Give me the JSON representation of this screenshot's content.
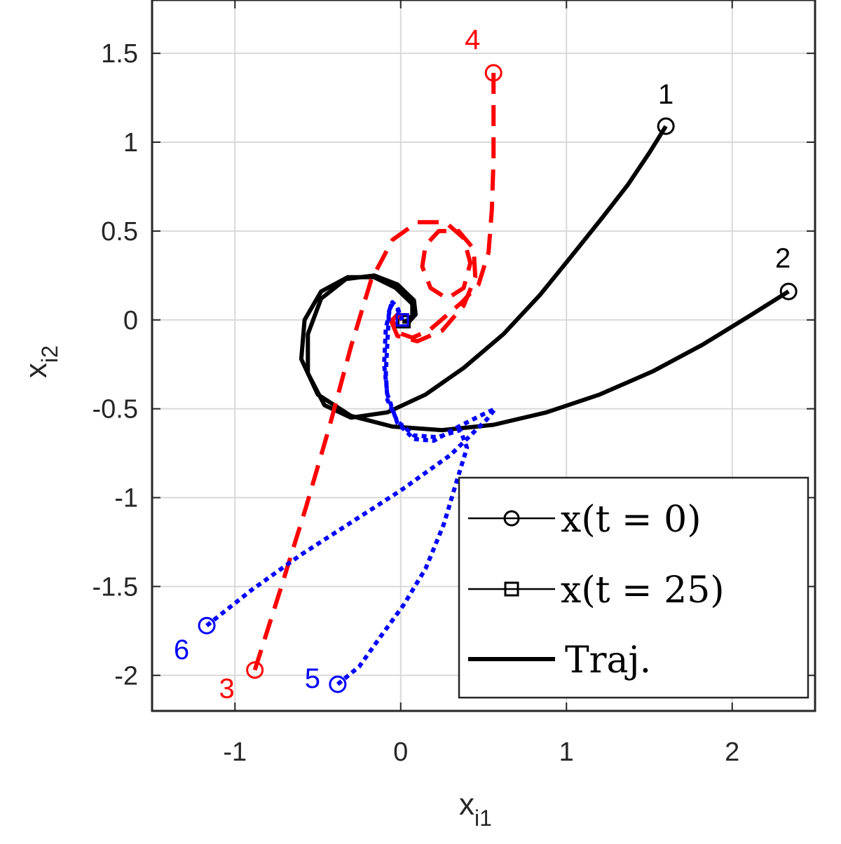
{
  "chart_data": {
    "type": "line",
    "xlabel": {
      "base": "x",
      "sub": "i1"
    },
    "ylabel": {
      "base": "x",
      "sub": "i2"
    },
    "xlim": [
      -1.5,
      2.5
    ],
    "ylim": [
      -2.2,
      1.8
    ],
    "xticks": [
      -1,
      0,
      1,
      2
    ],
    "xtick_labels": [
      "-1",
      "0",
      "1",
      "2"
    ],
    "yticks": [
      -2,
      -1.5,
      -1,
      -0.5,
      0,
      0.5,
      1,
      1.5
    ],
    "ytick_labels": [
      "-2",
      "-1.5",
      "-1",
      "-0.5",
      "0",
      "0.5",
      "1",
      "1.5"
    ],
    "grid": true,
    "legend": {
      "location": "bottom-right",
      "entries": [
        {
          "label": "x(t = 0)",
          "marker": "circle"
        },
        {
          "label": "x(t = 25)",
          "marker": "square"
        },
        {
          "label": "Traj.",
          "marker": "line"
        }
      ]
    },
    "series": [
      {
        "label": "1",
        "color": "#000000",
        "style": "solid",
        "points": [
          [
            1.6,
            1.09
          ],
          [
            1.5,
            0.94
          ],
          [
            1.37,
            0.76
          ],
          [
            1.22,
            0.58
          ],
          [
            1.04,
            0.37
          ],
          [
            0.84,
            0.14
          ],
          [
            0.62,
            -0.08
          ],
          [
            0.38,
            -0.27
          ],
          [
            0.15,
            -0.42
          ],
          [
            -0.08,
            -0.52
          ],
          [
            -0.3,
            -0.55
          ],
          [
            -0.46,
            -0.48
          ],
          [
            -0.56,
            -0.3
          ],
          [
            -0.56,
            -0.08
          ],
          [
            -0.48,
            0.12
          ],
          [
            -0.33,
            0.23
          ],
          [
            -0.16,
            0.25
          ],
          [
            -0.02,
            0.2
          ],
          [
            0.08,
            0.11
          ],
          [
            0.09,
            0.03
          ],
          [
            0.05,
            -0.01
          ],
          [
            0.01,
            -0.01
          ]
        ]
      },
      {
        "label": "2",
        "color": "#000000",
        "style": "solid",
        "points": [
          [
            2.34,
            0.16
          ],
          [
            2.1,
            0.02
          ],
          [
            1.82,
            -0.14
          ],
          [
            1.52,
            -0.29
          ],
          [
            1.2,
            -0.42
          ],
          [
            0.88,
            -0.52
          ],
          [
            0.56,
            -0.59
          ],
          [
            0.25,
            -0.62
          ],
          [
            -0.05,
            -0.6
          ],
          [
            -0.3,
            -0.54
          ],
          [
            -0.5,
            -0.42
          ],
          [
            -0.6,
            -0.22
          ],
          [
            -0.58,
            0.0
          ],
          [
            -0.48,
            0.16
          ],
          [
            -0.32,
            0.24
          ],
          [
            -0.16,
            0.24
          ],
          [
            -0.03,
            0.18
          ],
          [
            0.07,
            0.09
          ],
          [
            0.07,
            0.01
          ],
          [
            0.02,
            -0.01
          ]
        ]
      },
      {
        "label": "3",
        "color": "#ff0000",
        "style": "dashed",
        "points": [
          [
            -0.88,
            -1.97
          ],
          [
            -0.72,
            -1.5
          ],
          [
            -0.57,
            -1.05
          ],
          [
            -0.43,
            -0.6
          ],
          [
            -0.3,
            -0.15
          ],
          [
            -0.18,
            0.22
          ],
          [
            -0.05,
            0.45
          ],
          [
            0.1,
            0.55
          ],
          [
            0.27,
            0.55
          ],
          [
            0.38,
            0.46
          ],
          [
            0.42,
            0.32
          ],
          [
            0.38,
            0.18
          ],
          [
            0.28,
            0.12
          ],
          [
            0.18,
            0.18
          ],
          [
            0.13,
            0.3
          ],
          [
            0.15,
            0.42
          ],
          [
            0.23,
            0.5
          ],
          [
            0.35,
            0.5
          ],
          [
            0.44,
            0.4
          ],
          [
            0.45,
            0.24
          ],
          [
            0.38,
            0.08
          ],
          [
            0.25,
            -0.06
          ],
          [
            0.1,
            -0.12
          ],
          [
            -0.02,
            -0.09
          ],
          [
            -0.06,
            0.0
          ],
          [
            -0.02,
            0.04
          ],
          [
            0.01,
            0.0
          ]
        ]
      },
      {
        "label": "4",
        "color": "#ff0000",
        "style": "dashed",
        "points": [
          [
            0.56,
            1.39
          ],
          [
            0.56,
            1.15
          ],
          [
            0.56,
            0.9
          ],
          [
            0.55,
            0.62
          ],
          [
            0.53,
            0.38
          ],
          [
            0.47,
            0.2
          ],
          [
            0.37,
            0.1
          ],
          [
            0.27,
            0.02
          ],
          [
            0.17,
            -0.06
          ],
          [
            0.07,
            -0.1
          ],
          [
            -0.02,
            -0.07
          ],
          [
            -0.05,
            0.0
          ],
          [
            -0.02,
            0.03
          ],
          [
            0.01,
            0.0
          ]
        ]
      },
      {
        "label": "5",
        "color": "#0000ff",
        "style": "dotted",
        "points": [
          [
            -0.38,
            -2.05
          ],
          [
            -0.25,
            -1.95
          ],
          [
            -0.12,
            -1.78
          ],
          [
            0.02,
            -1.6
          ],
          [
            0.15,
            -1.4
          ],
          [
            0.26,
            -1.15
          ],
          [
            0.34,
            -0.9
          ],
          [
            0.4,
            -0.72
          ],
          [
            0.36,
            -0.62
          ],
          [
            0.22,
            -0.66
          ],
          [
            0.08,
            -0.65
          ],
          [
            -0.02,
            -0.57
          ],
          [
            -0.08,
            -0.45
          ],
          [
            -0.09,
            -0.3
          ],
          [
            -0.08,
            -0.12
          ],
          [
            -0.07,
            0.05
          ],
          [
            -0.05,
            0.1
          ],
          [
            -0.02,
            0.07
          ],
          [
            0.0,
            0.02
          ],
          [
            0.01,
            0.0
          ]
        ]
      },
      {
        "label": "6",
        "color": "#0000ff",
        "style": "dotted",
        "points": [
          [
            -1.17,
            -1.72
          ],
          [
            -0.9,
            -1.52
          ],
          [
            -0.6,
            -1.32
          ],
          [
            -0.3,
            -1.14
          ],
          [
            0.0,
            -0.96
          ],
          [
            0.3,
            -0.76
          ],
          [
            0.52,
            -0.56
          ],
          [
            0.57,
            -0.5
          ],
          [
            0.5,
            -0.53
          ],
          [
            0.35,
            -0.6
          ],
          [
            0.2,
            -0.68
          ],
          [
            0.08,
            -0.67
          ],
          [
            -0.02,
            -0.58
          ],
          [
            -0.08,
            -0.42
          ],
          [
            -0.1,
            -0.25
          ],
          [
            -0.09,
            -0.05
          ],
          [
            -0.06,
            0.08
          ],
          [
            -0.02,
            0.06
          ],
          [
            0.01,
            0.0
          ]
        ]
      }
    ]
  }
}
